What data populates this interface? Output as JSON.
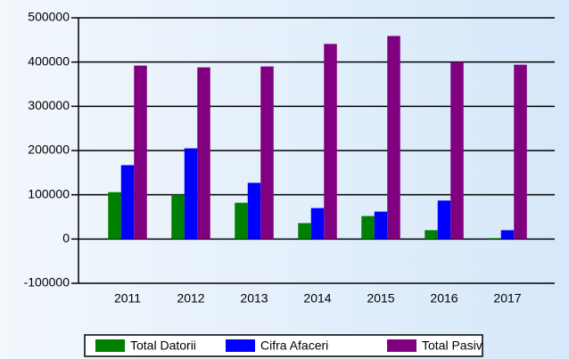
{
  "chart_data": {
    "type": "bar",
    "categories": [
      "2011",
      "2012",
      "2013",
      "2014",
      "2015",
      "2016",
      "2017"
    ],
    "series": [
      {
        "name": "Total Datorii",
        "color": "#008000",
        "values": [
          106000,
          100000,
          82000,
          36000,
          52000,
          20000,
          2000
        ]
      },
      {
        "name": "Cifra Afaceri",
        "color": "#0000ff",
        "values": [
          167000,
          205000,
          127000,
          70000,
          62000,
          87000,
          20000
        ]
      },
      {
        "name": "Total Pasiv",
        "color": "#800080",
        "values": [
          392000,
          388000,
          390000,
          441000,
          459000,
          400000,
          394000
        ]
      }
    ],
    "ylim": [
      -100000,
      500000
    ],
    "yticks": [
      -100000,
      0,
      100000,
      200000,
      300000,
      400000,
      500000
    ],
    "grid": true,
    "legend": "bottom"
  }
}
